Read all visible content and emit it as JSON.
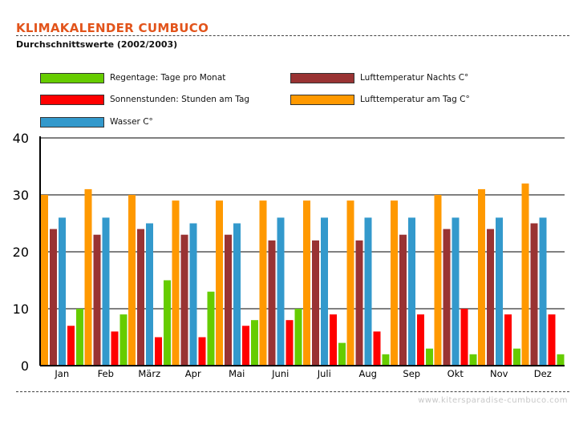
{
  "header": {
    "title": "KLIMAKALENDER CUMBUCO",
    "subtitle": "Durchschnittswerte (2002/2003)"
  },
  "footer": {
    "url": "www.kitersparadise-cumbuco.com"
  },
  "chart_data": {
    "type": "bar",
    "categories": [
      "Jan",
      "Feb",
      "März",
      "Apr",
      "Mai",
      "Juni",
      "Juli",
      "Aug",
      "Sep",
      "Okt",
      "Nov",
      "Dez"
    ],
    "ylim": [
      0,
      40
    ],
    "yticks": [
      0,
      10,
      20,
      30,
      40
    ],
    "grid": true,
    "legend_position": "top",
    "series": [
      {
        "name": "Lufttemperatur am Tag C°",
        "color": "#ff9900",
        "values": [
          30,
          31,
          30,
          29,
          29,
          29,
          29,
          29,
          29,
          30,
          31,
          32
        ]
      },
      {
        "name": "Lufttemperatur Nachts C°",
        "color": "#993333",
        "values": [
          24,
          23,
          24,
          23,
          23,
          22,
          22,
          22,
          23,
          24,
          24,
          25
        ]
      },
      {
        "name": "Wasser C°",
        "color": "#3399cc",
        "values": [
          26,
          26,
          25,
          25,
          25,
          26,
          26,
          26,
          26,
          26,
          26,
          26
        ]
      },
      {
        "name": "Sonnenstunden: Stunden am Tag",
        "color": "#ff0000",
        "values": [
          7,
          6,
          5,
          5,
          7,
          8,
          9,
          6,
          9,
          10,
          9,
          9
        ]
      },
      {
        "name": "Regentage: Tage pro Monat",
        "color": "#66cc00",
        "values": [
          10,
          9,
          15,
          13,
          8,
          10,
          4,
          2,
          3,
          2,
          3,
          2
        ]
      }
    ]
  }
}
